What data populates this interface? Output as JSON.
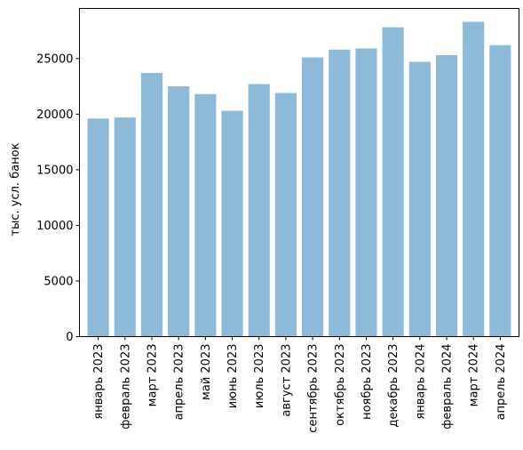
{
  "chart_data": {
    "type": "bar",
    "categories": [
      "январь 2023",
      "февраль 2023",
      "март 2023",
      "апрель 2023",
      "май 2023",
      "июнь 2023",
      "июль 2023",
      "август 2023",
      "сентябрь 2023",
      "октябрь 2023",
      "ноябрь 2023",
      "декабрь 2023",
      "январь 2024",
      "февраль 2024",
      "март 2024",
      "апрель 2024"
    ],
    "values": [
      19600,
      19700,
      23700,
      22500,
      21800,
      20300,
      22700,
      21900,
      25100,
      25800,
      25900,
      27800,
      24700,
      25300,
      28300,
      26200
    ],
    "ylabel": "тыс. усл. банок",
    "ylim": [
      0,
      29500
    ],
    "yticks": [
      0,
      5000,
      10000,
      15000,
      20000,
      25000
    ],
    "bar_color": "#8dbad9",
    "grid": false,
    "legend": false
  }
}
